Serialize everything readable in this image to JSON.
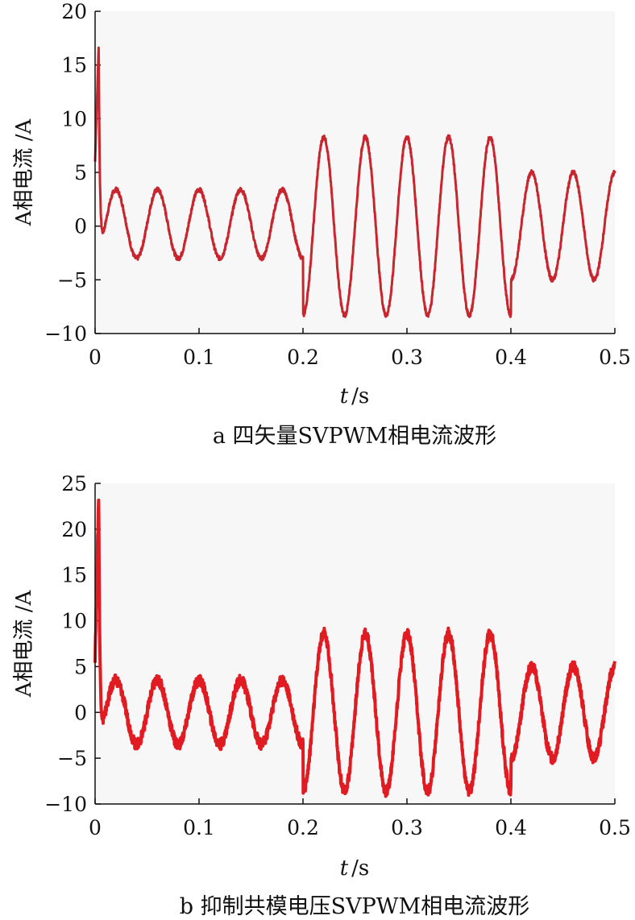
{
  "chart_data": [
    {
      "type": "line",
      "caption": "a 四矢量SVPWM相电流波形",
      "xlabel_var": "t",
      "xlabel_unit": "/s",
      "ylabel": "A相电流 /A",
      "xlim": [
        0,
        0.5
      ],
      "ylim": [
        -10,
        20
      ],
      "xticks": [
        "0",
        "0.1",
        "0.2",
        "0.3",
        "0.4",
        "0.5"
      ],
      "xtick_values": [
        0,
        0.1,
        0.2,
        0.3,
        0.4,
        0.5
      ],
      "yticks": [
        "−10",
        "−5",
        "0",
        "5",
        "10",
        "15",
        "20"
      ],
      "ytick_values": [
        -10,
        -5,
        0,
        5,
        10,
        15,
        20
      ],
      "grid": false,
      "colors": {
        "line": "#c8262e",
        "plot_bg": "#f7f7f7"
      },
      "series": [
        {
          "frequency_hz": 25,
          "startup_peak": 17,
          "segments": [
            {
              "t_start": 0.0,
              "t_end": 0.2,
              "amplitude": 3.2,
              "offset": 0.2
            },
            {
              "t_start": 0.2,
              "t_end": 0.4,
              "amplitude": 8.3,
              "offset": 0.0
            },
            {
              "t_start": 0.4,
              "t_end": 0.5,
              "amplitude": 5.0,
              "offset": 0.0
            }
          ],
          "ripple": 0.2
        }
      ]
    },
    {
      "type": "line",
      "caption": "b 抑制共模电压SVPWM相电流波形",
      "xlabel_var": "t",
      "xlabel_unit": "/s",
      "ylabel": "A相电流 /A",
      "xlim": [
        0,
        0.5
      ],
      "ylim": [
        -10,
        25
      ],
      "xticks": [
        "0",
        "0.1",
        "0.2",
        "0.3",
        "0.4",
        "0.5"
      ],
      "xtick_values": [
        0,
        0.1,
        0.2,
        0.3,
        0.4,
        0.5
      ],
      "yticks": [
        "−10",
        "−5",
        "0",
        "5",
        "10",
        "15",
        "20",
        "25"
      ],
      "ytick_values": [
        -10,
        -5,
        0,
        5,
        10,
        15,
        20,
        25
      ],
      "grid": false,
      "colors": {
        "line": "#e01b22",
        "plot_bg": "#f7f7f7"
      },
      "series": [
        {
          "frequency_hz": 25,
          "startup_peak": 24,
          "segments": [
            {
              "t_start": 0.0,
              "t_end": 0.2,
              "amplitude": 3.5,
              "offset": 0.0
            },
            {
              "t_start": 0.2,
              "t_end": 0.4,
              "amplitude": 8.6,
              "offset": 0.0
            },
            {
              "t_start": 0.4,
              "t_end": 0.5,
              "amplitude": 5.0,
              "offset": 0.0
            }
          ],
          "ripple": 0.6
        }
      ]
    }
  ]
}
